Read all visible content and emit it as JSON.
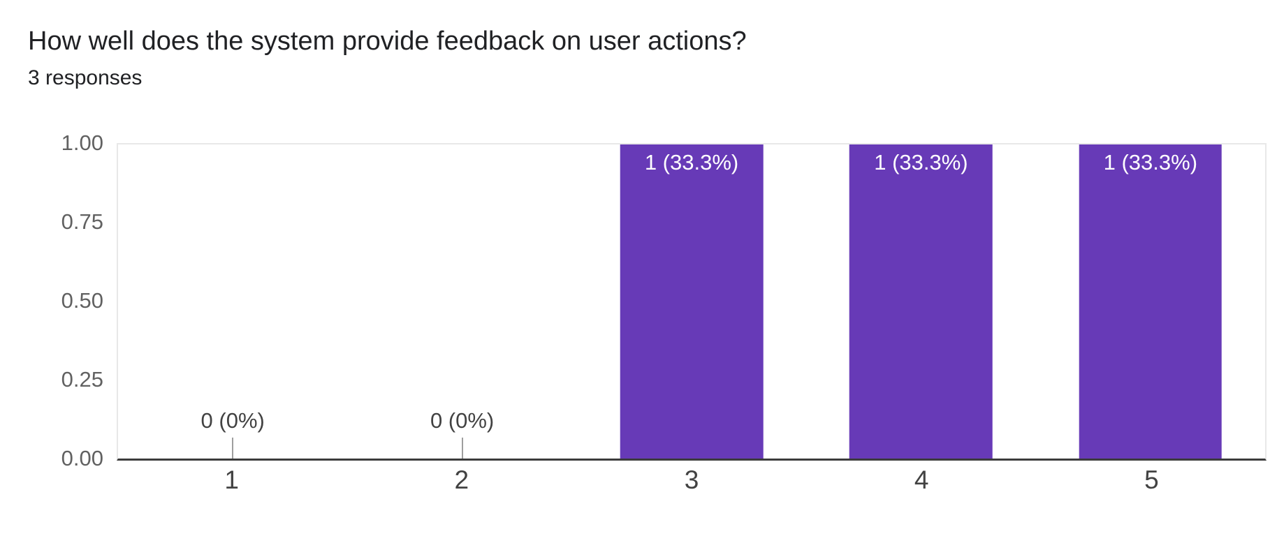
{
  "header": {
    "title": "How well does the system provide feedback on user actions?",
    "responses": "3 responses"
  },
  "chart_data": {
    "type": "bar",
    "title": "How well does the system provide feedback on user actions?",
    "subtitle": "3 responses",
    "total_responses": 3,
    "categories": [
      "1",
      "2",
      "3",
      "4",
      "5"
    ],
    "values": [
      0,
      0,
      1,
      1,
      1
    ],
    "labels": [
      "0 (0%)",
      "0 (0%)",
      "1 (33.3%)",
      "1 (33.3%)",
      "1 (33.3%)"
    ],
    "percentages": [
      0,
      0,
      33.3,
      33.3,
      33.3
    ],
    "yticks": [
      "1.00",
      "0.75",
      "0.50",
      "0.25",
      "0.00"
    ],
    "ylim": [
      0,
      1
    ],
    "grid": false,
    "legend": "none",
    "bar_color": "#673ab7",
    "bar_label_color": "#ffffff",
    "axis_line_color": "#3c3c3c",
    "plot_border_color": "#e8e8e8",
    "zero_stem_color": "#9e9e9e"
  }
}
